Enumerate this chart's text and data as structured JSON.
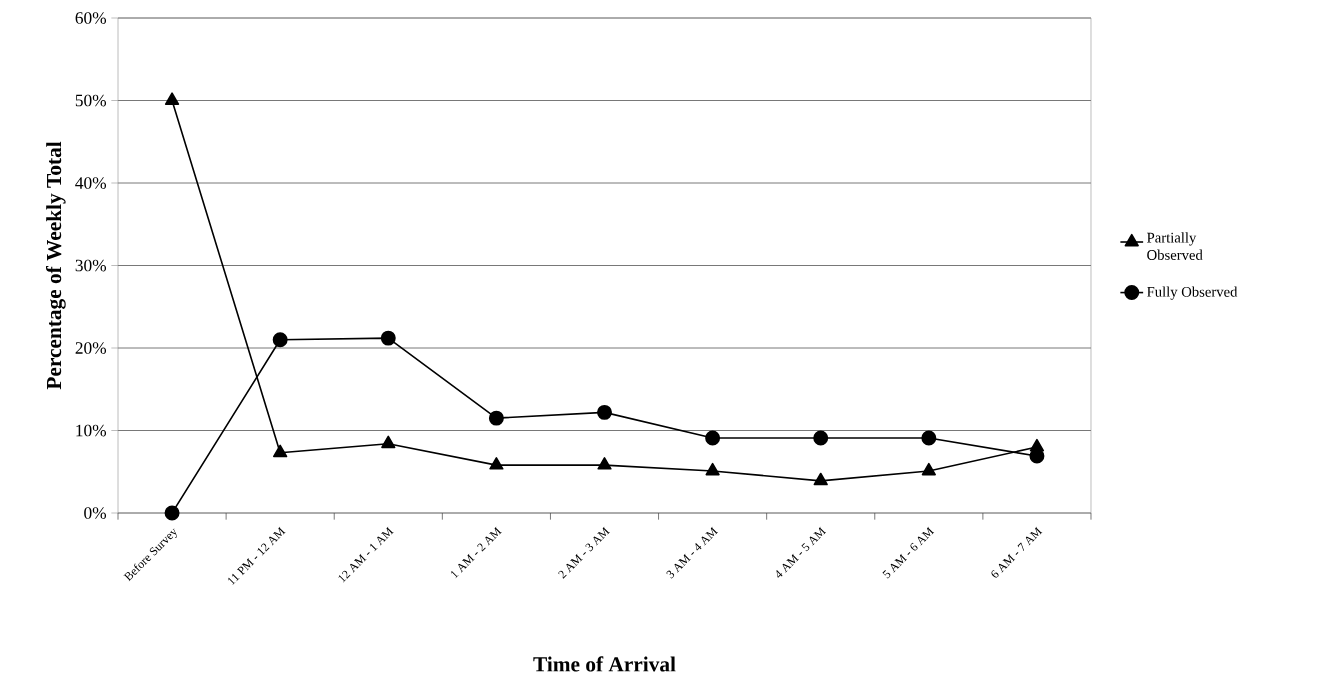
{
  "chart_data": {
    "type": "line",
    "xlabel": "Time of Arrival",
    "ylabel": "Percentage of Weekly Total",
    "categories": [
      "Before Survey",
      "11 PM - 12 AM",
      "12 AM - 1 AM",
      "1 AM - 2 AM",
      "2 AM - 3 AM",
      "3 AM - 4 AM",
      "4 AM - 5 AM",
      "5 AM - 6 AM",
      "6 AM - 7 AM"
    ],
    "series": [
      {
        "name": "Partially Observed",
        "color": "#000000",
        "marker": "triangle",
        "values": [
          50.0,
          7.3,
          8.4,
          5.8,
          5.8,
          5.1,
          3.9,
          5.1,
          8.0
        ]
      },
      {
        "name": "Fully Observed",
        "color": "#000000",
        "marker": "circle",
        "values": [
          0.0,
          21.0,
          21.2,
          11.5,
          12.2,
          9.1,
          9.1,
          9.1,
          6.9
        ]
      }
    ],
    "ylim": [
      0,
      60
    ],
    "yticks": [
      {
        "value": 0,
        "label": "0%"
      },
      {
        "value": 10,
        "label": "10%"
      },
      {
        "value": 20,
        "label": "20%"
      },
      {
        "value": 30,
        "label": "30%"
      },
      {
        "value": 40,
        "label": "40%"
      },
      {
        "value": 50,
        "label": "50%"
      },
      {
        "value": 60,
        "label": "60%"
      }
    ],
    "grid": "y",
    "legend": "right",
    "line_style": "solid"
  }
}
